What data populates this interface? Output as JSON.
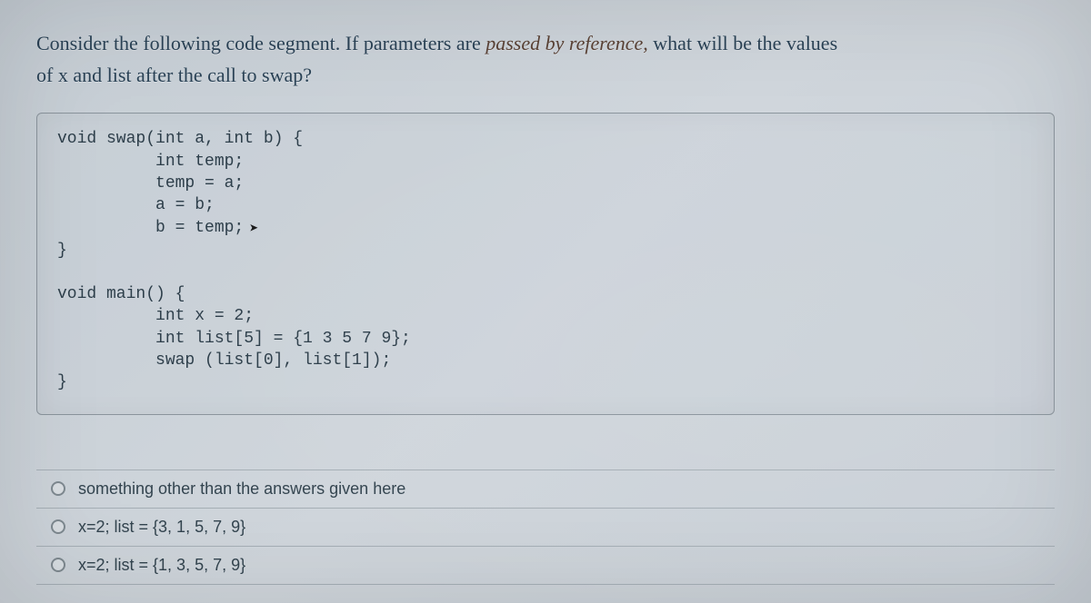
{
  "question": {
    "line1_part1": "Consider the following code segment. If parameters are ",
    "line1_emph": "passed by reference,",
    "line1_part2": " what will be the values",
    "line2": "of x and list after the call to swap?"
  },
  "code": {
    "type": "code-block",
    "text_color": "#2d3e4a",
    "fontsize": 18,
    "font_family": "Courier New",
    "background_color": "rgba(200,208,215,0.25)",
    "border_color": "#8a949c",
    "lines": [
      "void swap(int a, int b) {",
      "          int temp;",
      "          temp = a;",
      "          a = b;",
      "          b = temp;",
      "}",
      "",
      "void main() {",
      "          int x = 2;",
      "          int list[5] = {1 3 5 7 9};",
      "          swap (list[0], list[1]);",
      "}"
    ]
  },
  "answers": {
    "items": [
      {
        "label": "something other than the answers given here"
      },
      {
        "label": "x=2; list = {3, 1, 5, 7, 9}"
      },
      {
        "label": "x=2; list = {1, 3, 5, 7, 9}"
      }
    ]
  },
  "style": {
    "page_background": "#cdd4da",
    "question_color": "#2a4256",
    "emph_color": "#5a4236",
    "answer_text_color": "#33444f",
    "answer_border_color": "#a6afb6",
    "radio_border_color": "#7e8990"
  }
}
